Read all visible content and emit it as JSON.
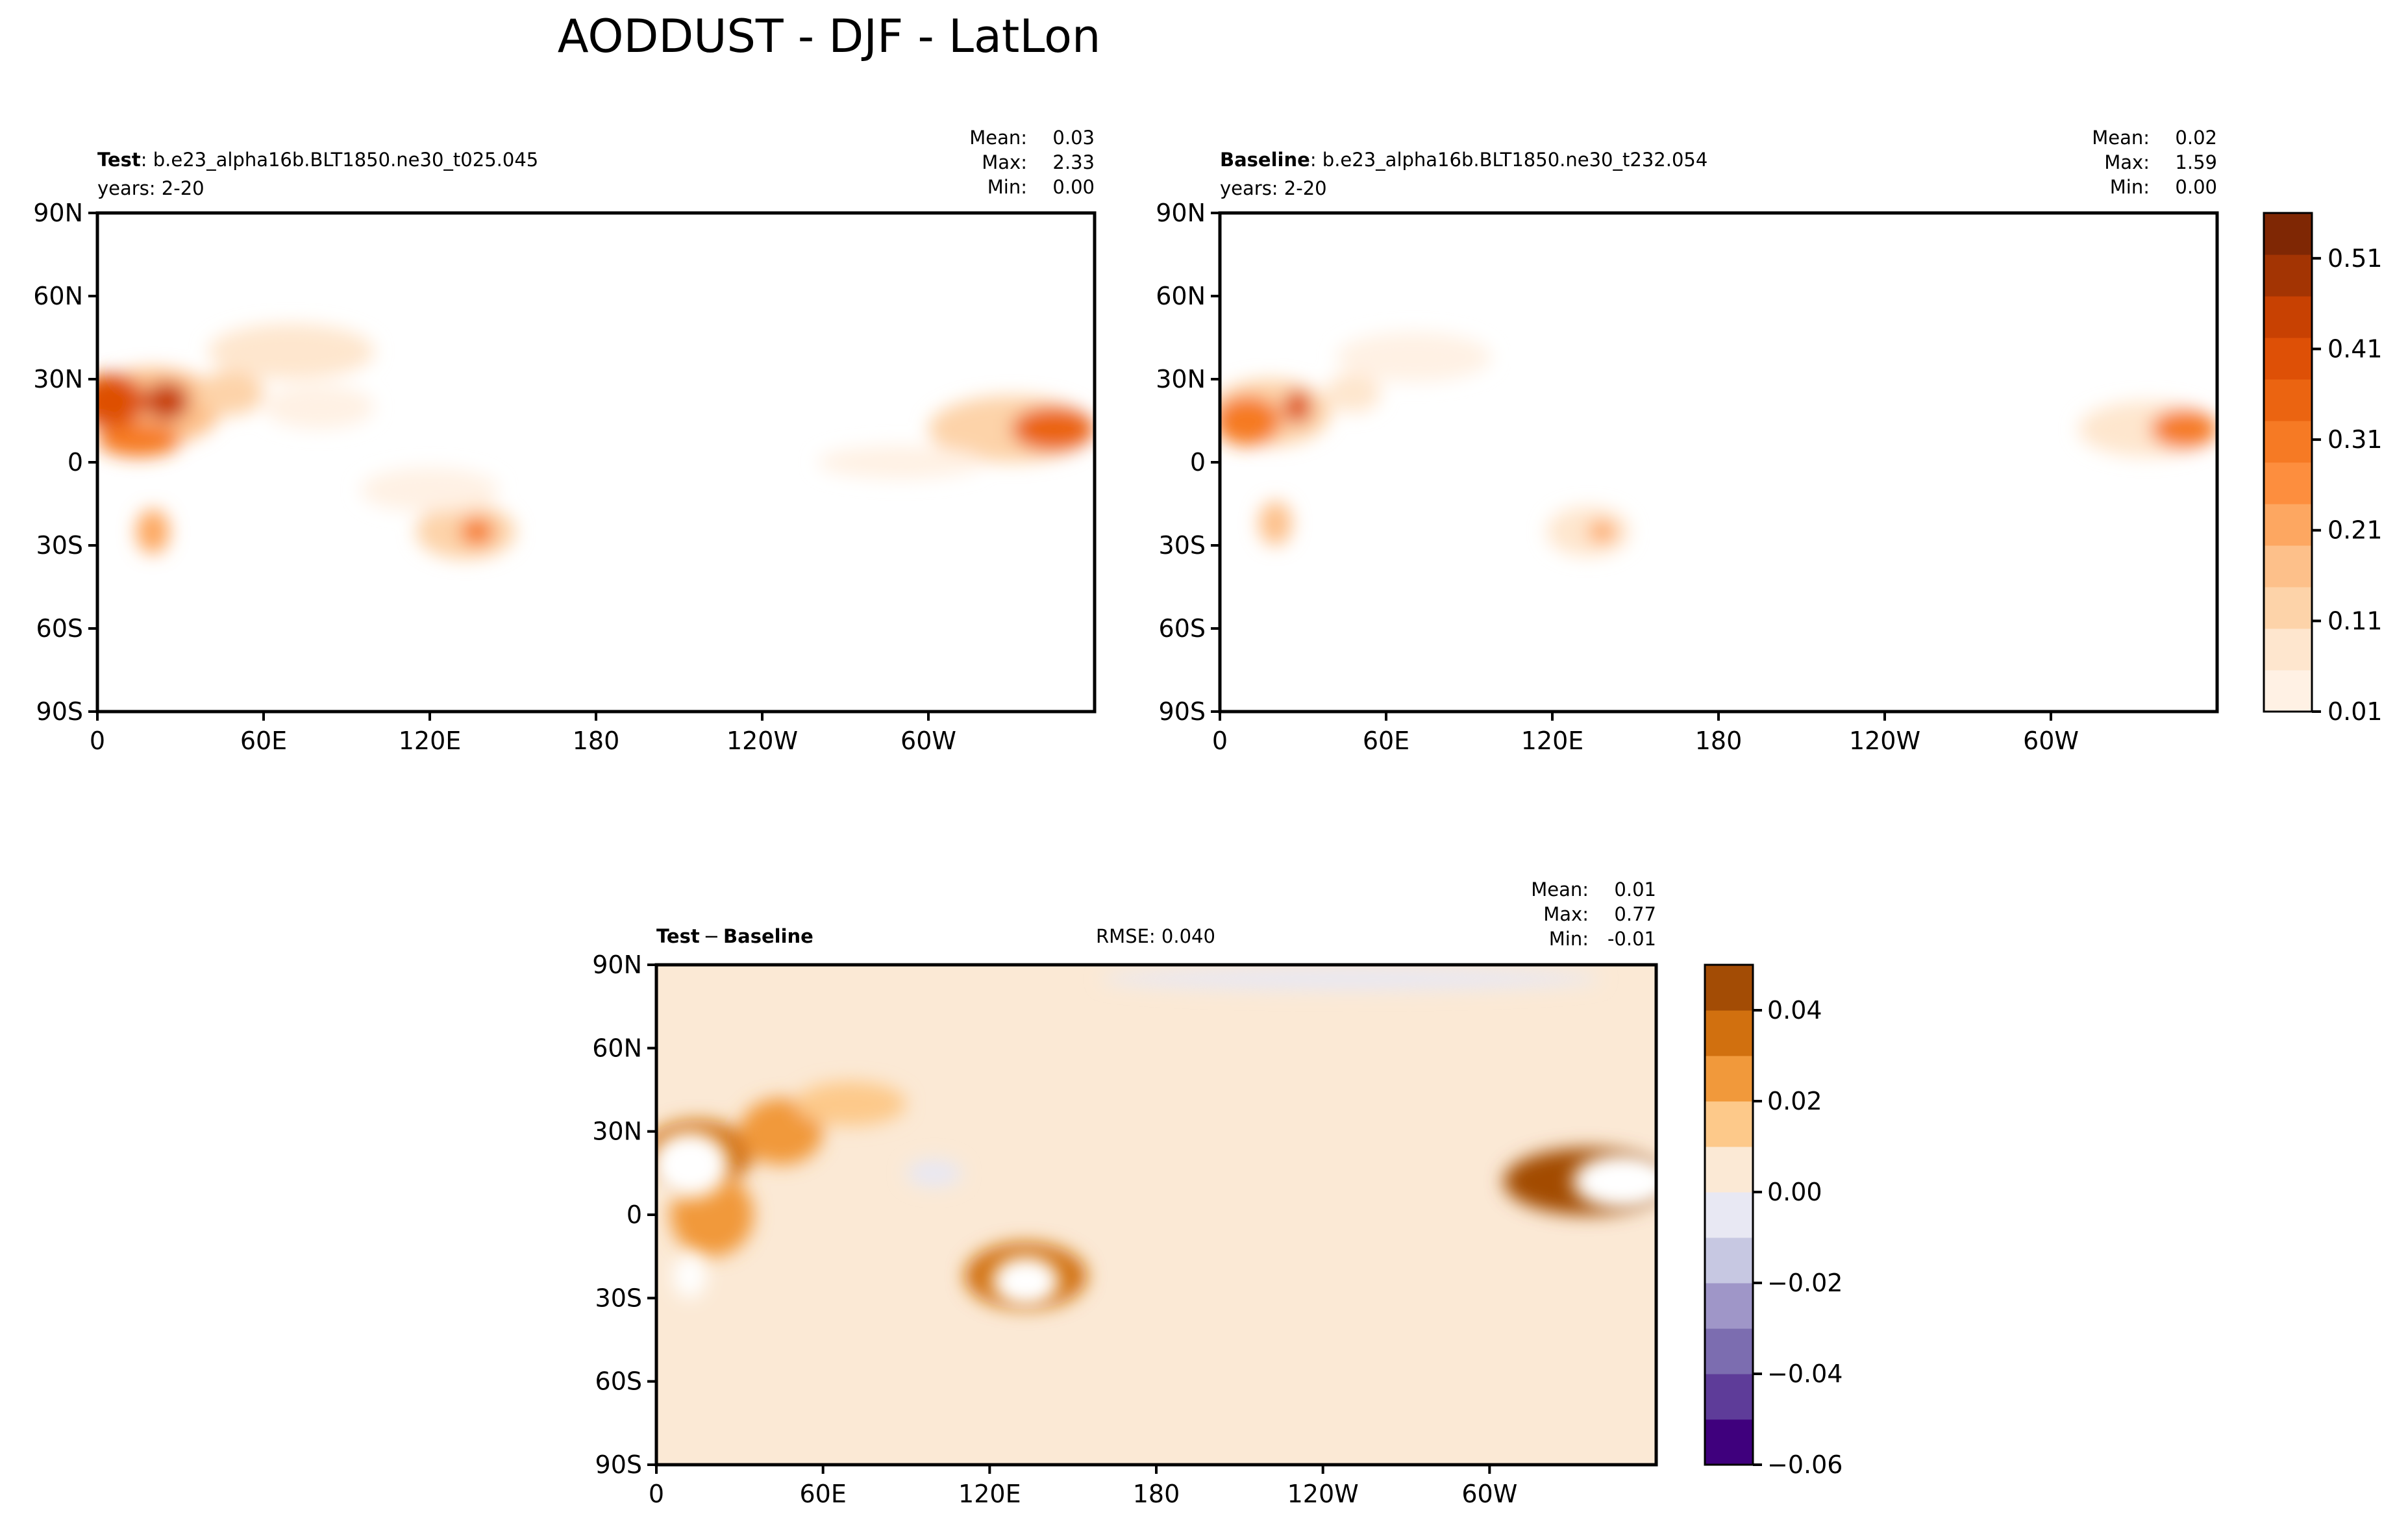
{
  "figure": {
    "title": "AODDUST - DJF - LatLon"
  },
  "chart_data": [
    {
      "type": "heatmap",
      "panel": "test",
      "name_bold": "Test",
      "name_rest": ": b.e23_alpha16b.BLT1850.ne30_t025.045",
      "years": "years: 2-20",
      "stats": {
        "mean_label": "Mean:",
        "mean": "0.03",
        "max_label": "Max:",
        "max": "2.33",
        "min_label": "Min:",
        "min": "0.00"
      },
      "xticks": [
        "0",
        "60E",
        "120E",
        "180",
        "120W",
        "60W"
      ],
      "yticks": [
        "90N",
        "60N",
        "30N",
        "0",
        "30S",
        "60S",
        "90S"
      ],
      "dust_blobs": [
        {
          "lon": 20,
          "lat": 20,
          "rlon": 25,
          "rlat": 14,
          "v": 0.15
        },
        {
          "lon": 5,
          "lat": 22,
          "rlon": 12,
          "rlat": 10,
          "v": 0.38
        },
        {
          "lon": 25,
          "lat": 22,
          "rlon": 8,
          "rlat": 7,
          "v": 0.45
        },
        {
          "lon": 15,
          "lat": 8,
          "rlon": 15,
          "rlat": 6,
          "v": 0.3
        },
        {
          "lon": 20,
          "lat": -25,
          "rlon": 6,
          "rlat": 8,
          "v": 0.2
        },
        {
          "lon": 48,
          "lat": 25,
          "rlon": 12,
          "rlat": 8,
          "v": 0.14
        },
        {
          "lon": 70,
          "lat": 40,
          "rlon": 30,
          "rlat": 10,
          "v": 0.06
        },
        {
          "lon": 80,
          "lat": 20,
          "rlon": 20,
          "rlat": 8,
          "v": 0.05
        },
        {
          "lon": 133,
          "lat": -25,
          "rlon": 18,
          "rlat": 10,
          "v": 0.12
        },
        {
          "lon": 137,
          "lat": -25,
          "rlon": 6,
          "rlat": 5,
          "v": 0.3
        },
        {
          "lon": 120,
          "lat": -10,
          "rlon": 25,
          "rlat": 8,
          "v": 0.05
        },
        {
          "lon": 330,
          "lat": 12,
          "rlon": 30,
          "rlat": 12,
          "v": 0.12
        },
        {
          "lon": 345,
          "lat": 12,
          "rlon": 15,
          "rlat": 8,
          "v": 0.35
        },
        {
          "lon": 290,
          "lat": 0,
          "rlon": 30,
          "rlat": 6,
          "v": 0.04
        }
      ]
    },
    {
      "type": "heatmap",
      "panel": "baseline",
      "name_bold": "Baseline",
      "name_rest": ": b.e23_alpha16b.BLT1850.ne30_t232.054",
      "years": "years: 2-20",
      "stats": {
        "mean_label": "Mean:",
        "mean": "0.02",
        "max_label": "Max:",
        "max": "1.59",
        "min_label": "Min:",
        "min": "0.00"
      },
      "xticks": [
        "0",
        "60E",
        "120E",
        "180",
        "120W",
        "60W"
      ],
      "yticks": [
        "90N",
        "60N",
        "30N",
        "0",
        "30S",
        "60S",
        "90S"
      ],
      "dust_blobs": [
        {
          "lon": 18,
          "lat": 18,
          "rlon": 22,
          "rlat": 12,
          "v": 0.12
        },
        {
          "lon": 10,
          "lat": 15,
          "rlon": 12,
          "rlat": 9,
          "v": 0.32
        },
        {
          "lon": 28,
          "lat": 20,
          "rlon": 5,
          "rlat": 6,
          "v": 0.38
        },
        {
          "lon": 20,
          "lat": -22,
          "rlon": 6,
          "rlat": 8,
          "v": 0.15
        },
        {
          "lon": 48,
          "lat": 25,
          "rlon": 10,
          "rlat": 7,
          "v": 0.1
        },
        {
          "lon": 70,
          "lat": 38,
          "rlon": 28,
          "rlat": 9,
          "v": 0.05
        },
        {
          "lon": 133,
          "lat": -25,
          "rlon": 15,
          "rlat": 9,
          "v": 0.08
        },
        {
          "lon": 138,
          "lat": -25,
          "rlon": 5,
          "rlat": 4,
          "v": 0.2
        },
        {
          "lon": 335,
          "lat": 12,
          "rlon": 25,
          "rlat": 10,
          "v": 0.1
        },
        {
          "lon": 348,
          "lat": 12,
          "rlon": 12,
          "rlat": 7,
          "v": 0.3
        }
      ]
    },
    {
      "type": "heatmap",
      "panel": "diff",
      "name_bold_a": "Test",
      "name_op": "−",
      "name_bold_b": "Baseline",
      "rmse": "RMSE: 0.040",
      "stats": {
        "mean_label": "Mean:",
        "mean": "0.01",
        "max_label": "Max:",
        "max": "0.77",
        "min_label": "Min:",
        "min": "-0.01"
      },
      "xticks": [
        "0",
        "60E",
        "120E",
        "180",
        "120W",
        "60W"
      ],
      "yticks": [
        "90N",
        "60N",
        "30N",
        "0",
        "30S",
        "60S",
        "90S"
      ],
      "background_value": 0.005,
      "diff_blobs": [
        {
          "lon": 15,
          "lat": 22,
          "rlon": 20,
          "rlat": 12,
          "v": 0.035
        },
        {
          "lon": 45,
          "lat": 30,
          "rlon": 15,
          "rlat": 12,
          "v": 0.025
        },
        {
          "lon": 70,
          "lat": 40,
          "rlon": 20,
          "rlat": 8,
          "v": 0.015
        },
        {
          "lon": 20,
          "lat": 0,
          "rlon": 15,
          "rlat": 15,
          "v": 0.02
        },
        {
          "lon": 133,
          "lat": -22,
          "rlon": 22,
          "rlat": 12,
          "v": 0.03
        },
        {
          "lon": 335,
          "lat": 12,
          "rlon": 30,
          "rlat": 12,
          "v": 0.04
        },
        {
          "lon": 100,
          "lat": 15,
          "rlon": 10,
          "rlat": 5,
          "v": -0.005
        },
        {
          "lon": 250,
          "lat": 85,
          "rlon": 90,
          "rlat": 4,
          "v": -0.005
        }
      ],
      "masked_regions": [
        {
          "lon": 12,
          "lat": 18,
          "rlon": 14,
          "rlat": 12
        },
        {
          "lon": 12,
          "lat": -22,
          "rlon": 6,
          "rlat": 8
        },
        {
          "lon": 133,
          "lat": -24,
          "rlon": 12,
          "rlat": 9
        },
        {
          "lon": 348,
          "lat": 12,
          "rlon": 18,
          "rlat": 10
        }
      ]
    }
  ],
  "colorbars": {
    "main": {
      "ticks": [
        "0.01",
        "0.11",
        "0.21",
        "0.31",
        "0.41",
        "0.51"
      ],
      "range": [
        0.01,
        0.56
      ],
      "levels": 11,
      "colors": [
        "#fff1e4",
        "#fee6ce",
        "#fdd3a9",
        "#fdc08a",
        "#fda761",
        "#fd8e3e",
        "#f67a24",
        "#eb6411",
        "#de5006",
        "#c84102",
        "#a33403",
        "#7f2704"
      ]
    },
    "diff": {
      "ticks": [
        "0.04",
        "0.02",
        "0.00",
        "−0.02",
        "−0.04",
        "−0.06"
      ],
      "range": [
        -0.06,
        0.05
      ],
      "colors": [
        "#3f007d",
        "#5e3c99",
        "#7c6db0",
        "#9f96c8",
        "#c7c8e2",
        "#e8e8f3",
        "#fbe9d5",
        "#fdc98a",
        "#f1993b",
        "#d1700f",
        "#a34c05"
      ]
    }
  }
}
